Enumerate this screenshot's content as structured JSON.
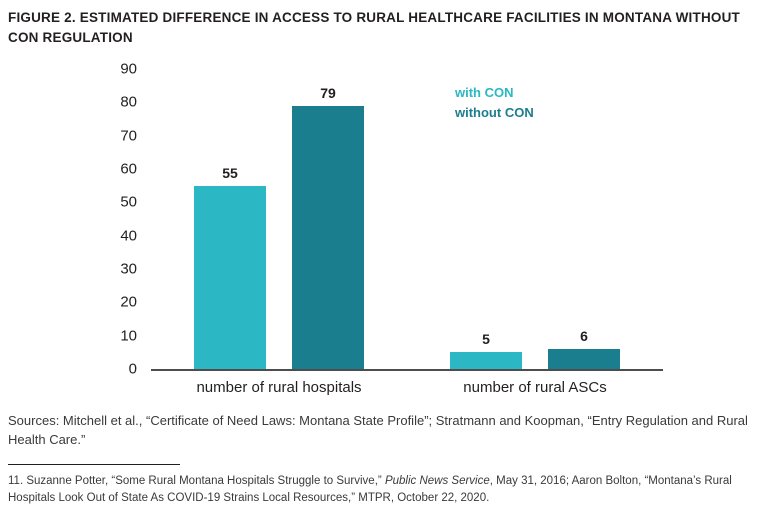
{
  "figure": {
    "title": "FIGURE 2. ESTIMATED DIFFERENCE IN ACCESS TO RURAL HEALTHCARE FACILITIES IN MONTANA WITHOUT CON REGULATION"
  },
  "chart_data": {
    "type": "bar",
    "categories": [
      "number of rural hospitals",
      "number of rural ASCs"
    ],
    "series": [
      {
        "name": "with CON",
        "color": "#2cb7c5",
        "values": [
          55,
          5
        ]
      },
      {
        "name": "without CON",
        "color": "#1b7e8f",
        "values": [
          79,
          6
        ]
      }
    ],
    "ylim": [
      0,
      90
    ],
    "ytick_step": 10,
    "grid": false,
    "legend_position": "top-right-inside",
    "value_labels_shown": true
  },
  "sources": "Sources: Mitchell et al., “Certificate of Need Laws: Montana State Profile”; Stratmann and Koopman, “Entry Regulation and Rural Health Care.”",
  "footnote": {
    "before": "11. Suzanne Potter, “Some Rural Montana Hospitals Struggle to Survive,” ",
    "italic": "Public News Service",
    "after": ", May 31, 2016; Aaron Bolton, “Montana’s Rural Hospitals Look Out of State As COVID-19 Strains Local Resources,” MTPR, October 22, 2020."
  }
}
